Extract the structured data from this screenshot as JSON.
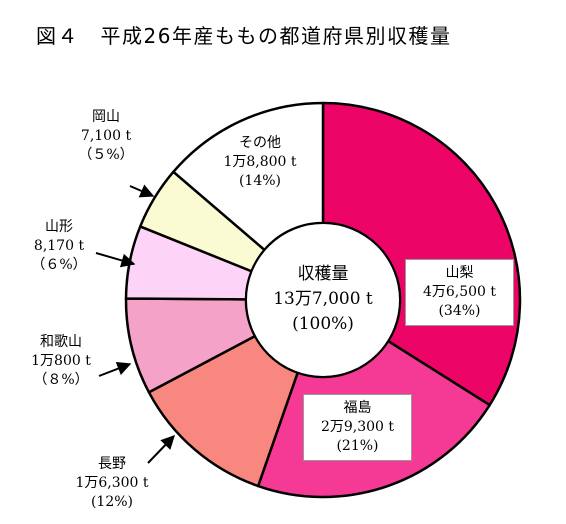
{
  "title": "図４　平成26年産ももの都道府県別収穫量",
  "chart_data": {
    "type": "pie",
    "donut": true,
    "unit": "t",
    "order": "clockwise from top",
    "center": {
      "name": "収穫量",
      "amount": "13万7,000 t",
      "percent": "(100%)"
    },
    "slices": [
      {
        "name": "山梨",
        "value": 46500,
        "amount": "4万6,500 t",
        "percent": "(34%)",
        "color": "#ec0567"
      },
      {
        "name": "福島",
        "value": 29300,
        "amount": "2万9,300 t",
        "percent": "(21%)",
        "color": "#f43a95"
      },
      {
        "name": "長野",
        "value": 16300,
        "amount": "1万6,300 t",
        "percent": "(12%)",
        "color": "#f7877f"
      },
      {
        "name": "和歌山",
        "value": 10800,
        "amount": "1万800 t",
        "percent": "（８%）",
        "color": "#f5a2c9"
      },
      {
        "name": "山形",
        "value": 8170,
        "amount": "8,170 t",
        "percent": "（６%）",
        "color": "#fdd3f7"
      },
      {
        "name": "岡山",
        "value": 7100,
        "amount": "7,100 t",
        "percent": "（５%）",
        "color": "#fbfbd3"
      },
      {
        "name": "その他",
        "value": 18800,
        "amount": "1万8,800 t",
        "percent": "(14%)",
        "color": "#ffffff"
      }
    ]
  }
}
